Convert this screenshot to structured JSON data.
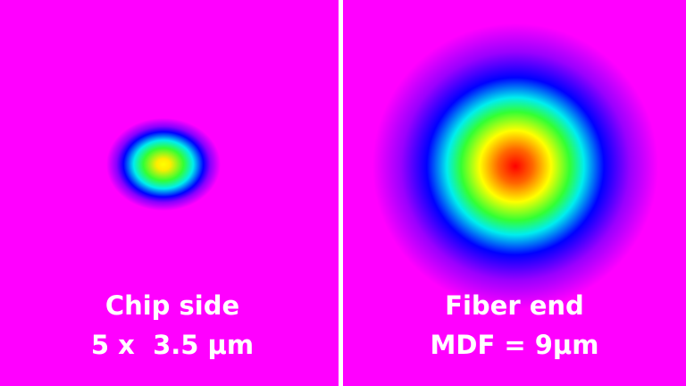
{
  "panels": [
    {
      "title": "Chip side",
      "subtitle": "5 x  3.5 μm"
    },
    {
      "title": "Fiber end",
      "subtitle": "MDF = 9μm"
    }
  ]
}
